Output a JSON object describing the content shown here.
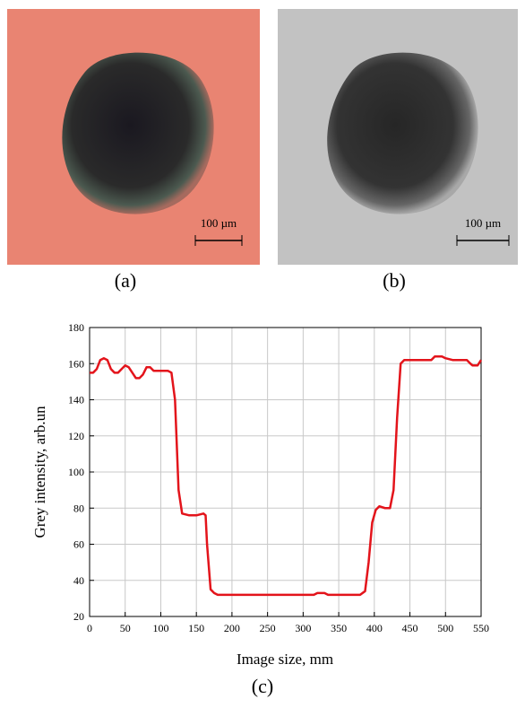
{
  "images": [
    {
      "label": "(a)",
      "scale_label": "100 µm"
    },
    {
      "label": "(b)",
      "scale_label": "100 µm"
    }
  ],
  "chart_data": {
    "type": "line",
    "label": "(c)",
    "x_label": "Image size, mm",
    "y_label": "Grey intensity, arb.un",
    "x": [
      0,
      5,
      10,
      15,
      20,
      25,
      30,
      35,
      40,
      45,
      50,
      55,
      60,
      65,
      70,
      75,
      80,
      85,
      90,
      100,
      110,
      115,
      120,
      125,
      130,
      140,
      150,
      160,
      163,
      165,
      170,
      175,
      180,
      200,
      250,
      300,
      315,
      320,
      330,
      335,
      350,
      380,
      387,
      392,
      397,
      402,
      407,
      415,
      422,
      427,
      432,
      437,
      442,
      460,
      480,
      485,
      495,
      500,
      510,
      530,
      535,
      538,
      545,
      550
    ],
    "values": [
      155,
      155,
      157,
      162,
      163,
      162,
      157,
      155,
      155,
      157,
      159,
      158,
      155,
      152,
      152,
      154,
      158,
      158,
      156,
      156,
      156,
      155,
      140,
      90,
      77,
      76,
      76,
      77,
      76,
      60,
      35,
      33,
      32,
      32,
      32,
      32,
      32,
      33,
      33,
      32,
      32,
      32,
      34,
      50,
      72,
      79,
      81,
      80,
      80,
      90,
      130,
      160,
      162,
      162,
      162,
      164,
      164,
      163,
      162,
      162,
      160,
      159,
      159,
      162
    ],
    "color": "#e3141b",
    "xlim": [
      0,
      550
    ],
    "xticks": [
      0,
      50,
      100,
      150,
      200,
      250,
      300,
      350,
      400,
      450,
      500,
      550
    ],
    "ylim": [
      20,
      180
    ],
    "yticks": [
      20,
      40,
      60,
      80,
      100,
      120,
      140,
      160,
      180
    ],
    "grid": true
  }
}
